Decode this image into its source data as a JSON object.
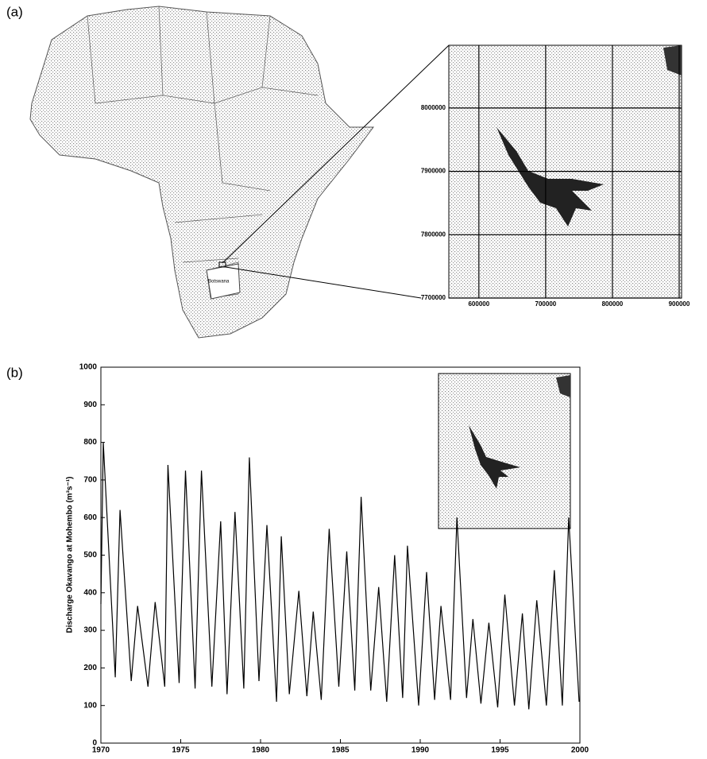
{
  "panel_labels": [
    "(a)",
    "(b)"
  ],
  "map": {
    "country_label": "Botswana",
    "xlim": [
      555000,
      903600
    ],
    "ylim": [
      7700000,
      8099000
    ],
    "xticks": [
      600000,
      700000,
      800000,
      900000
    ],
    "yticks": [
      7700000,
      7800000,
      7900000,
      8000000
    ]
  },
  "chart_data": {
    "type": "line",
    "ylabel": "Discharge Okavango at Mohembo (m³s⁻¹)",
    "color": "#000000",
    "x": [
      1970.0,
      1970.15,
      1970.9,
      1971.2,
      1971.9,
      1972.3,
      1972.95,
      1973.4,
      1974.0,
      1974.2,
      1974.9,
      1975.3,
      1975.9,
      1976.3,
      1976.95,
      1977.5,
      1977.9,
      1978.4,
      1978.95,
      1979.3,
      1979.9,
      1980.4,
      1981.0,
      1981.3,
      1981.8,
      1982.4,
      1982.9,
      1983.3,
      1983.8,
      1984.3,
      1984.9,
      1985.4,
      1985.9,
      1986.3,
      1986.9,
      1987.4,
      1987.9,
      1988.4,
      1988.9,
      1989.2,
      1989.9,
      1990.4,
      1990.9,
      1991.3,
      1991.9,
      1992.3,
      1992.9,
      1993.3,
      1993.8,
      1994.3,
      1994.85,
      1995.3,
      1995.9,
      1996.4,
      1996.8,
      1997.3,
      1997.9,
      1998.4,
      1998.9,
      1999.3,
      1999.95
    ],
    "values": [
      370,
      800,
      175,
      620,
      165,
      365,
      150,
      375,
      150,
      740,
      160,
      725,
      145,
      725,
      150,
      590,
      130,
      615,
      145,
      760,
      165,
      580,
      110,
      550,
      130,
      405,
      125,
      350,
      115,
      570,
      150,
      510,
      140,
      655,
      140,
      415,
      110,
      500,
      120,
      525,
      100,
      455,
      115,
      365,
      115,
      600,
      120,
      330,
      105,
      320,
      95,
      395,
      100,
      345,
      90,
      380,
      100,
      460,
      100,
      600,
      110
    ],
    "xlim": [
      1970,
      2000
    ],
    "ylim": [
      0,
      1000
    ],
    "xticks": [
      1970,
      1975,
      1980,
      1985,
      1990,
      1995,
      2000
    ],
    "yticks": [
      0,
      100,
      200,
      300,
      400,
      500,
      600,
      700,
      800,
      900,
      1000
    ]
  }
}
